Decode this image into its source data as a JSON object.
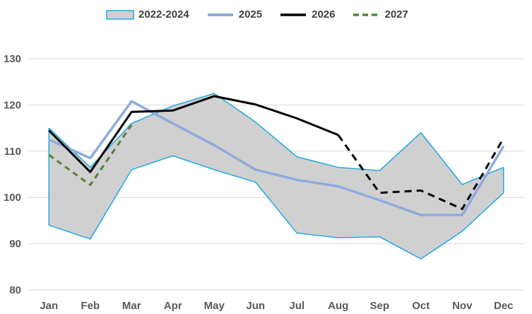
{
  "chart_data": {
    "type": "line",
    "categories": [
      "Jan",
      "Feb",
      "Mar",
      "Apr",
      "May",
      "Jun",
      "Jul",
      "Aug",
      "Sep",
      "Oct",
      "Nov",
      "Dec"
    ],
    "ylim": [
      80,
      130
    ],
    "yticks": [
      80,
      90,
      100,
      110,
      120,
      130
    ],
    "grid": true,
    "legend_position": "top",
    "band": {
      "name": "2022-2024",
      "upper": [
        115,
        106.5,
        116,
        119.8,
        122.5,
        116.3,
        108.8,
        106.5,
        105.8,
        114,
        102.8,
        106.5
      ],
      "lower": [
        94,
        91,
        106,
        109,
        106,
        103.3,
        92.3,
        91.3,
        91.5,
        86.7,
        92.7,
        101
      ],
      "fill": "#d0d0d0",
      "stroke": "#1ea9e1"
    },
    "series": [
      {
        "name": "2025",
        "values": [
          112.5,
          108.5,
          120.8,
          116,
          111.3,
          106,
          103.8,
          102.4,
          99.4,
          96.2,
          96.2,
          111.1
        ],
        "color": "#8faadc",
        "style": "solid"
      },
      {
        "name": "2026",
        "values": [
          114.5,
          105.5,
          118.5,
          118.8,
          121.9,
          120.1,
          117.1,
          113.5,
          101,
          101.5,
          97.5,
          112.8
        ],
        "color": "#000000",
        "style": "solid-then-dashed",
        "dash_from_index": 7
      },
      {
        "name": "2027",
        "values": [
          109.2,
          102.7,
          115.7,
          null,
          null,
          null,
          null,
          null,
          null,
          null,
          null,
          null
        ],
        "color": "#548235",
        "style": "dashed"
      }
    ]
  }
}
